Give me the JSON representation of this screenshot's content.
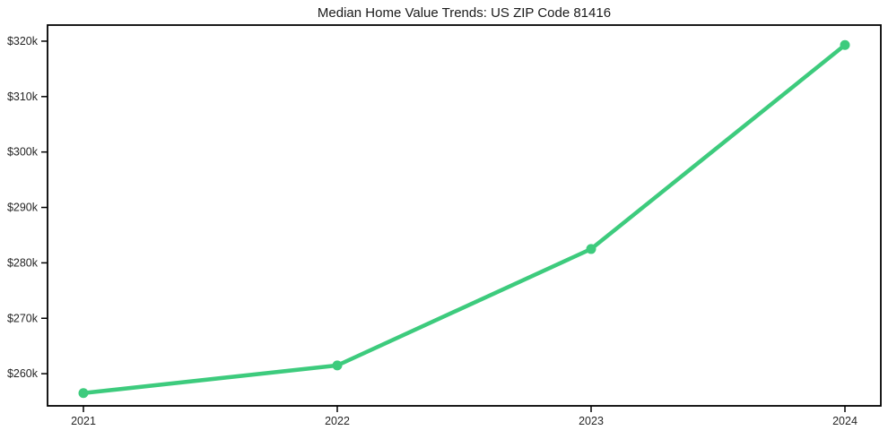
{
  "chart_data": {
    "type": "line",
    "title": "Median Home Value Trends: US ZIP Code 81416",
    "x_categories": [
      "2021",
      "2022",
      "2023",
      "2024"
    ],
    "values_k": [
      256.5,
      261.5,
      282.5,
      319.3
    ],
    "y_ticks_k": [
      260,
      270,
      280,
      290,
      300,
      310,
      320
    ],
    "y_tick_labels": [
      "$260k",
      "$270k",
      "$280k",
      "$290k",
      "$300k",
      "$310k",
      "$320k"
    ],
    "ylim_k": [
      254.2,
      322.9
    ],
    "xlabel": "",
    "ylabel": "",
    "grid": false,
    "legend": "none",
    "marker": "circle",
    "line_color": "#3dcb7d",
    "marker_color": "#3dcb7d",
    "axis_color": "#000000",
    "tick_label_color": "#262626",
    "background_color": "#ffffff"
  }
}
